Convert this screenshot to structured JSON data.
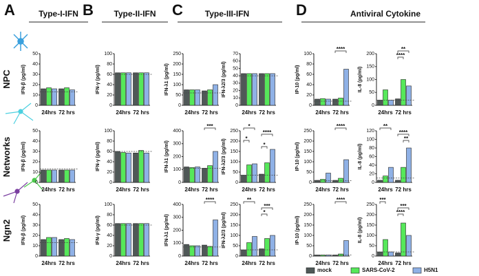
{
  "panels": [
    "A",
    "B",
    "C",
    "D"
  ],
  "column_titles": [
    "Type-I-IFN",
    "Type-II-IFN",
    "Type-III-IFN",
    "Antiviral Cytokine"
  ],
  "row_labels": [
    "NPC",
    "Networks",
    "Ngn2"
  ],
  "legend": [
    {
      "name": "mock",
      "color": "#4f5857"
    },
    {
      "name": "SARS-CoV-2",
      "color": "#56e85a"
    },
    {
      "name": "H5N1",
      "color": "#8fb1e6"
    }
  ],
  "chart_data": [
    {
      "type": "bar",
      "ylabel": "IFN-β (pg/ml)",
      "ylim": [
        0,
        50
      ],
      "yticks": [
        0,
        10,
        20,
        30,
        40,
        50
      ],
      "categories": [
        "24hrs",
        "72 hrs"
      ],
      "series": [
        {
          "values": [
            16,
            16
          ]
        },
        {
          "values": [
            17,
            17
          ]
        },
        {
          "values": [
            16,
            15
          ]
        }
      ],
      "ref_line": 13,
      "annotations": []
    },
    {
      "type": "bar",
      "ylabel": "IFN-γ (pg/ml)",
      "ylim": [
        0,
        100
      ],
      "yticks": [
        0,
        20,
        40,
        60,
        80,
        100
      ],
      "categories": [
        "24hrs",
        "72 hrs"
      ],
      "series": [
        {
          "values": [
            63,
            63
          ]
        },
        {
          "values": [
            63,
            63
          ]
        },
        {
          "values": [
            63,
            63
          ]
        }
      ],
      "ref_line": 60,
      "annotations": []
    },
    {
      "type": "bar",
      "ylabel": "IFN-λ1 (pg/ml)",
      "ylim": [
        0,
        250
      ],
      "yticks": [
        0,
        50,
        100,
        150,
        200,
        250
      ],
      "categories": [
        "24hrs",
        "72 hrs"
      ],
      "series": [
        {
          "values": [
            75,
            70
          ]
        },
        {
          "values": [
            75,
            75
          ]
        },
        {
          "values": [
            75,
            100
          ]
        }
      ],
      "ref_line": 60,
      "annotations": []
    },
    {
      "type": "bar",
      "ylabel": "IFN-λ2/3 (pg/ml)",
      "ylim": [
        0,
        70
      ],
      "yticks": [
        0,
        10,
        20,
        30,
        40,
        50,
        60,
        70
      ],
      "categories": [
        "24hrs",
        "72 hrs"
      ],
      "series": [
        {
          "values": [
            43,
            43
          ]
        },
        {
          "values": [
            43,
            43
          ]
        },
        {
          "values": [
            43,
            43
          ]
        }
      ],
      "ref_line": 40,
      "annotations": []
    },
    {
      "type": "bar",
      "ylabel": "IP-10 (pg/ml)",
      "ylim": [
        0,
        100
      ],
      "yticks": [
        0,
        20,
        40,
        60,
        80,
        100
      ],
      "categories": [
        "24hrs",
        "72 hrs"
      ],
      "series": [
        {
          "values": [
            12,
            12
          ]
        },
        {
          "values": [
            13,
            14
          ]
        },
        {
          "values": [
            12,
            70
          ]
        }
      ],
      "ref_line": 8,
      "annotations": [
        {
          "label": "****",
          "bars": [
            3,
            5
          ]
        }
      ]
    },
    {
      "type": "bar",
      "ylabel": "IL-8 (pg/ml)",
      "ylim": [
        0,
        200
      ],
      "yticks": [
        0,
        50,
        100,
        150,
        200
      ],
      "categories": [
        "24hrs",
        "72 hrs"
      ],
      "series": [
        {
          "values": [
            20,
            25
          ]
        },
        {
          "values": [
            60,
            100
          ]
        },
        {
          "values": [
            20,
            75
          ]
        }
      ],
      "ref_line": 20,
      "annotations": [
        {
          "label": "**",
          "bars": [
            3,
            5
          ]
        },
        {
          "label": "****",
          "bars": [
            3,
            4
          ]
        }
      ]
    },
    {
      "type": "bar",
      "ylabel": "IFN-β (pg/ml)",
      "ylim": [
        0,
        50
      ],
      "yticks": [
        0,
        10,
        20,
        30,
        40,
        50
      ],
      "categories": [
        "24hrs",
        "72 hrs"
      ],
      "series": [
        {
          "values": [
            12,
            12
          ]
        },
        {
          "values": [
            12,
            12
          ]
        },
        {
          "values": [
            12,
            12
          ]
        }
      ],
      "ref_line": 13,
      "annotations": []
    },
    {
      "type": "bar",
      "ylabel": "IFN-γ (pg/ml)",
      "ylim": [
        0,
        100
      ],
      "yticks": [
        0,
        20,
        40,
        60,
        80,
        100
      ],
      "categories": [
        "24hrs",
        "72 hrs"
      ],
      "series": [
        {
          "values": [
            60,
            57
          ]
        },
        {
          "values": [
            58,
            62
          ]
        },
        {
          "values": [
            57,
            57
          ]
        }
      ],
      "ref_line": 60,
      "annotations": []
    },
    {
      "type": "bar",
      "ylabel": "IFN-λ1 (pg/ml)",
      "ylim": [
        0,
        400
      ],
      "yticks": [
        0,
        100,
        200,
        300,
        400
      ],
      "categories": [
        "24hrs",
        "72 hrs"
      ],
      "series": [
        {
          "values": [
            120,
            110
          ]
        },
        {
          "values": [
            115,
            130
          ]
        },
        {
          "values": [
            120,
            240
          ]
        }
      ],
      "ref_line": 110,
      "annotations": [
        {
          "label": "***",
          "bars": [
            3,
            5
          ]
        }
      ]
    },
    {
      "type": "bar",
      "ylabel": "IFN-λ2/3 (pg/ml)",
      "ylim": [
        0,
        250
      ],
      "yticks": [
        0,
        50,
        100,
        150,
        200,
        250
      ],
      "categories": [
        "24hrs",
        "72 hrs"
      ],
      "series": [
        {
          "values": [
            35,
            40
          ]
        },
        {
          "values": [
            85,
            95
          ]
        },
        {
          "values": [
            90,
            160
          ]
        }
      ],
      "ref_line": 35,
      "annotations": [
        {
          "label": "*",
          "bars": [
            0,
            2
          ]
        },
        {
          "label": "****",
          "bars": [
            3,
            5
          ]
        },
        {
          "label": "*",
          "bars": [
            0,
            1
          ]
        },
        {
          "label": "*",
          "bars": [
            3,
            4
          ]
        }
      ]
    },
    {
      "type": "bar",
      "ylabel": "IP-10 (pg/ml)",
      "ylim": [
        0,
        250
      ],
      "yticks": [
        0,
        50,
        100,
        150,
        200,
        250
      ],
      "categories": [
        "24hrs",
        "72 hrs"
      ],
      "series": [
        {
          "values": [
            10,
            10
          ]
        },
        {
          "values": [
            15,
            20
          ]
        },
        {
          "values": [
            45,
            110
          ]
        }
      ],
      "ref_line": 8,
      "annotations": [
        {
          "label": "****",
          "bars": [
            3,
            5
          ]
        }
      ]
    },
    {
      "type": "bar",
      "ylabel": "IL-8 (pg/ml)",
      "ylim": [
        0,
        120
      ],
      "yticks": [
        0,
        20,
        40,
        60,
        80,
        100,
        120
      ],
      "categories": [
        "24hrs",
        "72 hrs"
      ],
      "series": [
        {
          "values": [
            5,
            5
          ]
        },
        {
          "values": [
            15,
            35
          ]
        },
        {
          "values": [
            35,
            80
          ]
        }
      ],
      "ref_line": 10,
      "annotations": [
        {
          "label": "**",
          "bars": [
            0,
            2
          ]
        },
        {
          "label": "****",
          "bars": [
            3,
            5
          ]
        },
        {
          "label": "**",
          "bars": [
            4,
            5
          ]
        }
      ]
    },
    {
      "type": "bar",
      "ylabel": "IFN-β (pg/ml)",
      "ylim": [
        0,
        50
      ],
      "yticks": [
        0,
        10,
        20,
        30,
        40,
        50
      ],
      "categories": [
        "24hrs",
        "72 hrs"
      ],
      "series": [
        {
          "values": [
            16,
            16
          ]
        },
        {
          "values": [
            18,
            17
          ]
        },
        {
          "values": [
            18,
            16
          ]
        }
      ],
      "ref_line": 13,
      "annotations": []
    },
    {
      "type": "bar",
      "ylabel": "IFN-γ (pg/ml)",
      "ylim": [
        0,
        100
      ],
      "yticks": [
        0,
        20,
        40,
        60,
        80,
        100
      ],
      "categories": [
        "24hrs",
        "72 hrs"
      ],
      "series": [
        {
          "values": [
            63,
            63
          ]
        },
        {
          "values": [
            63,
            63
          ]
        },
        {
          "values": [
            63,
            63
          ]
        }
      ],
      "ref_line": 60,
      "annotations": []
    },
    {
      "type": "bar",
      "ylabel": "IFN-λ1 (pg/ml)",
      "ylim": [
        0,
        400
      ],
      "yticks": [
        0,
        100,
        200,
        300,
        400
      ],
      "categories": [
        "24hrs",
        "72 hrs"
      ],
      "series": [
        {
          "values": [
            90,
            85
          ]
        },
        {
          "values": [
            80,
            75
          ]
        },
        {
          "values": [
            80,
            280
          ]
        }
      ],
      "ref_line": 70,
      "annotations": [
        {
          "label": "****",
          "bars": [
            3,
            5
          ]
        }
      ]
    },
    {
      "type": "bar",
      "ylabel": "IFN-λ2/3 (pg/ml)",
      "ylim": [
        0,
        250
      ],
      "yticks": [
        0,
        50,
        100,
        150,
        200,
        250
      ],
      "categories": [
        "24hrs",
        "72 hrs"
      ],
      "series": [
        {
          "values": [
            30,
            35
          ]
        },
        {
          "values": [
            65,
            85
          ]
        },
        {
          "values": [
            95,
            100
          ]
        }
      ],
      "ref_line": 30,
      "annotations": [
        {
          "label": "**",
          "bars": [
            0,
            2
          ]
        },
        {
          "label": "***",
          "bars": [
            3,
            5
          ]
        },
        {
          "label": "*",
          "bars": [
            3,
            4
          ]
        }
      ]
    },
    {
      "type": "bar",
      "ylabel": "IP-10 (pg/ml)",
      "ylim": [
        0,
        250
      ],
      "yticks": [
        0,
        50,
        100,
        150,
        200,
        250
      ],
      "categories": [
        "24hrs",
        "72 hrs"
      ],
      "series": [
        {
          "values": [
            5,
            5
          ]
        },
        {
          "values": [
            5,
            10
          ]
        },
        {
          "values": [
            5,
            75
          ]
        }
      ],
      "ref_line": 5,
      "annotations": [
        {
          "label": "****",
          "bars": [
            3,
            5
          ]
        }
      ]
    },
    {
      "type": "bar",
      "ylabel": "IL-8 (pg/ml)",
      "ylim": [
        0,
        250
      ],
      "yticks": [
        0,
        50,
        100,
        150,
        200,
        250
      ],
      "categories": [
        "24hrs",
        "72 hrs"
      ],
      "series": [
        {
          "values": [
            20,
            15
          ]
        },
        {
          "values": [
            80,
            160
          ]
        },
        {
          "values": [
            20,
            100
          ]
        }
      ],
      "ref_line": 20,
      "annotations": [
        {
          "label": "***",
          "bars": [
            0,
            1
          ]
        },
        {
          "label": "***",
          "bars": [
            3,
            5
          ]
        },
        {
          "label": "****",
          "bars": [
            3,
            4
          ]
        }
      ]
    }
  ]
}
